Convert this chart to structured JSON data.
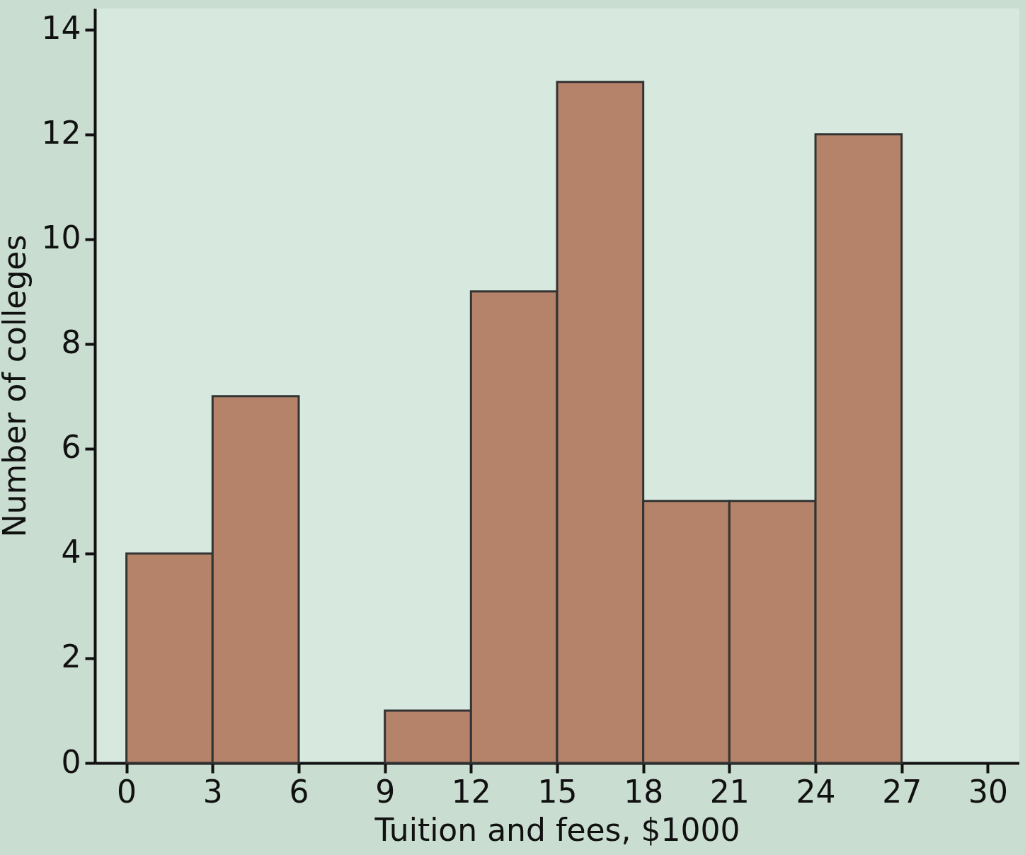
{
  "chart_data": {
    "type": "histogram",
    "xlabel": "Tuition and fees, $1000",
    "ylabel": "Number of colleges",
    "bins": [
      0,
      3,
      6,
      9,
      12,
      15,
      18,
      21,
      24,
      27
    ],
    "values": [
      4,
      7,
      0,
      1,
      9,
      13,
      5,
      5,
      12
    ],
    "color": "#b4836a",
    "xlim": [
      -1.1,
      31.1
    ],
    "xticks": [
      0,
      3,
      6,
      9,
      12,
      15,
      18,
      21,
      24,
      27,
      30
    ],
    "ylim": [
      0,
      14.4
    ],
    "yticks": [
      0,
      2,
      4,
      6,
      8,
      10,
      12,
      14
    ],
    "grid": false
  }
}
